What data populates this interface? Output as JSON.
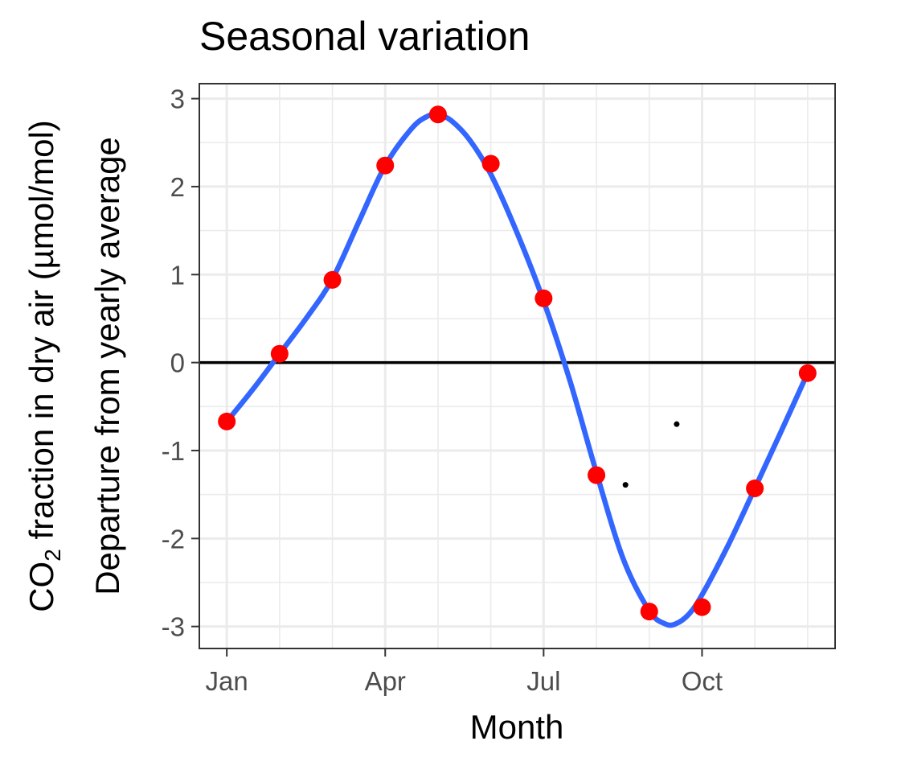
{
  "chart_data": {
    "type": "line",
    "title": "Seasonal variation",
    "xlabel": "Month",
    "ylabel_line1": {
      "prefix": "CO",
      "subscript": "2",
      "suffix": " fraction in dry air (µmol/mol)"
    },
    "ylabel_line2": "Departure from yearly average",
    "x_ticks": [
      {
        "month": 1,
        "label": "Jan"
      },
      {
        "month": 4,
        "label": "Apr"
      },
      {
        "month": 7,
        "label": "Jul"
      },
      {
        "month": 10,
        "label": "Oct"
      }
    ],
    "y_ticks": [
      {
        "value": 3,
        "label": "3"
      },
      {
        "value": 2,
        "label": "2"
      },
      {
        "value": 1,
        "label": "1"
      },
      {
        "value": 0,
        "label": "0"
      },
      {
        "value": -1,
        "label": "-1"
      },
      {
        "value": -2,
        "label": "-2"
      },
      {
        "value": -3,
        "label": "-3"
      }
    ],
    "xlim": [
      0.48,
      12.52
    ],
    "ylim": [
      -3.25,
      3.17
    ],
    "grid": true,
    "reference_line_y": 0,
    "series": [
      {
        "kind": "points",
        "color": "#ff0000",
        "points": [
          {
            "x": 1,
            "y": -0.67
          },
          {
            "x": 2,
            "y": 0.1
          },
          {
            "x": 3,
            "y": 0.94
          },
          {
            "x": 4,
            "y": 2.24
          },
          {
            "x": 5,
            "y": 2.82
          },
          {
            "x": 6,
            "y": 2.26
          },
          {
            "x": 7,
            "y": 0.73
          },
          {
            "x": 8,
            "y": -1.28
          },
          {
            "x": 9,
            "y": -2.83
          },
          {
            "x": 10,
            "y": -2.78
          },
          {
            "x": 11,
            "y": -1.43
          },
          {
            "x": 12,
            "y": -0.12
          }
        ]
      },
      {
        "kind": "smooth-line",
        "color": "#3366ff",
        "points": [
          {
            "x": 1.0,
            "y": -0.67
          },
          {
            "x": 1.5,
            "y": -0.3
          },
          {
            "x": 2.0,
            "y": 0.1
          },
          {
            "x": 2.5,
            "y": 0.5
          },
          {
            "x": 3.0,
            "y": 0.95
          },
          {
            "x": 3.5,
            "y": 1.6
          },
          {
            "x": 4.0,
            "y": 2.24
          },
          {
            "x": 4.5,
            "y": 2.66
          },
          {
            "x": 4.8,
            "y": 2.8
          },
          {
            "x": 5.0,
            "y": 2.82
          },
          {
            "x": 5.25,
            "y": 2.75
          },
          {
            "x": 5.6,
            "y": 2.53
          },
          {
            "x": 6.0,
            "y": 2.14
          },
          {
            "x": 6.5,
            "y": 1.47
          },
          {
            "x": 7.0,
            "y": 0.7
          },
          {
            "x": 7.5,
            "y": -0.21
          },
          {
            "x": 8.0,
            "y": -1.25
          },
          {
            "x": 8.5,
            "y": -2.22
          },
          {
            "x": 9.0,
            "y": -2.82
          },
          {
            "x": 9.3,
            "y": -2.97
          },
          {
            "x": 9.5,
            "y": -2.97
          },
          {
            "x": 9.75,
            "y": -2.86
          },
          {
            "x": 10.0,
            "y": -2.64
          },
          {
            "x": 10.5,
            "y": -2.07
          },
          {
            "x": 11.0,
            "y": -1.43
          },
          {
            "x": 11.5,
            "y": -0.78
          },
          {
            "x": 12.0,
            "y": -0.12
          }
        ]
      },
      {
        "kind": "small-dots",
        "color": "#000000",
        "points": [
          {
            "x": 8.55,
            "y": -1.39
          },
          {
            "x": 9.52,
            "y": -0.7
          }
        ]
      }
    ]
  }
}
